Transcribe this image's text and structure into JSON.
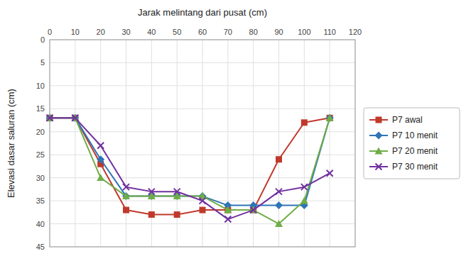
{
  "chart_data": {
    "type": "line",
    "x_label": "Jarak melintang dari pusat (cm)",
    "y_label": "Elevasi dasar saluran (cm)",
    "x": [
      0,
      10,
      20,
      30,
      40,
      50,
      60,
      70,
      80,
      90,
      100,
      110
    ],
    "series": [
      {
        "name": "P7 awal",
        "color": "#c0392b",
        "marker": "square",
        "values": [
          17,
          17,
          27,
          37,
          38,
          38,
          37,
          37,
          37,
          26,
          18,
          17
        ]
      },
      {
        "name": "P7 10 menit",
        "color": "#2e75b6",
        "marker": "diamond",
        "values": [
          17,
          17,
          26,
          34,
          34,
          34,
          34,
          36,
          36,
          36,
          36,
          17
        ]
      },
      {
        "name": "P7 20 menit",
        "color": "#70ad47",
        "marker": "triangle",
        "values": [
          17,
          17,
          30,
          34,
          34,
          34,
          34,
          37,
          37,
          40,
          35,
          17
        ]
      },
      {
        "name": "P7 30 menit",
        "color": "#7030a0",
        "marker": "x",
        "values": [
          17,
          17,
          23,
          32,
          33,
          33,
          35,
          39,
          37,
          33,
          32,
          29
        ]
      }
    ],
    "xlim": [
      0,
      120
    ],
    "ylim": [
      45,
      0
    ],
    "xticks": [
      0,
      10,
      20,
      30,
      40,
      50,
      60,
      70,
      80,
      90,
      100,
      110,
      120
    ],
    "yticks": [
      0,
      5,
      10,
      15,
      20,
      25,
      30,
      35,
      40,
      45
    ],
    "grid": true,
    "legend": "right"
  }
}
